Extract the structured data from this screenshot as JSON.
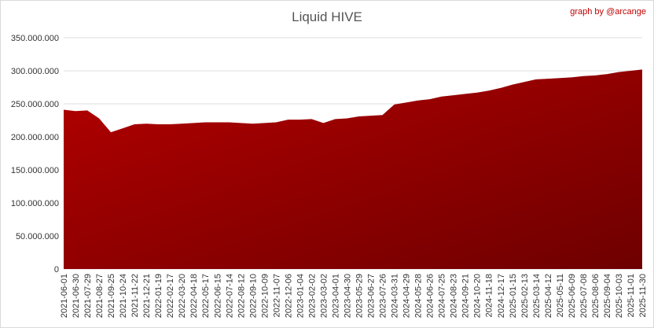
{
  "chart_data": {
    "type": "area",
    "title": "Liquid HIVE",
    "credit": "graph by @arcange",
    "categories": [
      "2021-06-01",
      "2021-06-30",
      "2021-07-29",
      "2021-08-27",
      "2021-09-25",
      "2021-10-24",
      "2021-11-22",
      "2021-12-21",
      "2022-01-19",
      "2022-02-17",
      "2022-03-20",
      "2022-04-18",
      "2022-05-17",
      "2022-06-15",
      "2022-07-14",
      "2022-08-12",
      "2022-09-10",
      "2022-10-09",
      "2022-11-07",
      "2022-12-06",
      "2023-01-04",
      "2023-02-02",
      "2023-03-02",
      "2023-04-01",
      "2023-04-30",
      "2023-05-29",
      "2023-06-27",
      "2023-07-26",
      "2024-03-31",
      "2024-04-29",
      "2024-05-28",
      "2024-06-26",
      "2024-07-25",
      "2024-08-23",
      "2024-09-21",
      "2024-10-20",
      "2024-11-18",
      "2024-12-17",
      "2025-01-15",
      "2025-02-13",
      "2025-03-14",
      "2025-04-12",
      "2025-05-11",
      "2025-06-09",
      "2025-07-08",
      "2025-08-06",
      "2025-09-04",
      "2025-10-03",
      "2025-11-01",
      "2025-11-30"
    ],
    "values": [
      241000000,
      239000000,
      240000000,
      228000000,
      207000000,
      213000000,
      219000000,
      220000000,
      219000000,
      219000000,
      220000000,
      221000000,
      222000000,
      222000000,
      222000000,
      221000000,
      220000000,
      221000000,
      222000000,
      226000000,
      226000000,
      227000000,
      221000000,
      227000000,
      228000000,
      231000000,
      232000000,
      233000000,
      249000000,
      252000000,
      255000000,
      257000000,
      261000000,
      263000000,
      265000000,
      267000000,
      270000000,
      274000000,
      279000000,
      283000000,
      287000000,
      288000000,
      289000000,
      290000000,
      292000000,
      293000000,
      295000000,
      298000000,
      300000000,
      302000000
    ],
    "color": [
      "#b30000",
      "#6e0000"
    ],
    "ylim": [
      0,
      350000000
    ],
    "yticks": [
      0,
      {
        "value": 50000000,
        "label": "50.000.000"
      },
      {
        "value": 100000000,
        "label": "100.000.000"
      },
      {
        "value": 150000000,
        "label": "150.000.000"
      },
      {
        "value": 200000000,
        "label": "200.000.000"
      },
      {
        "value": 250000000,
        "label": "250.000.000"
      },
      {
        "value": 300000000,
        "label": "300.000.000"
      },
      {
        "value": 350000000,
        "label": "350.000.000"
      }
    ],
    "grid": true
  }
}
